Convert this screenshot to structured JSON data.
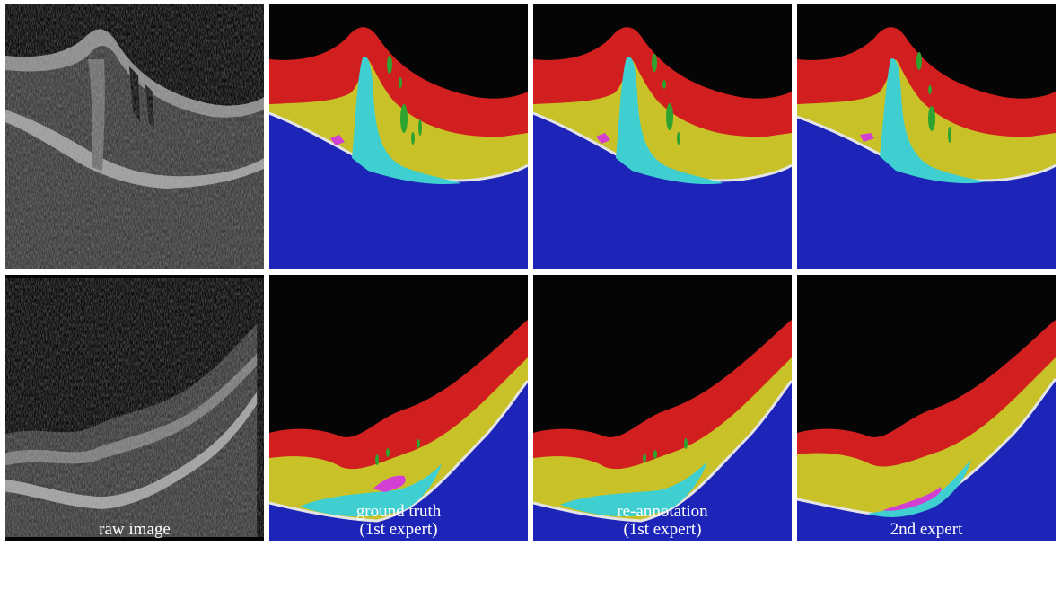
{
  "figure": {
    "rows": [
      {
        "row": "top",
        "panels": [
          {
            "kind": "raw",
            "caption": []
          },
          {
            "kind": "gt",
            "caption": []
          },
          {
            "kind": "reann",
            "caption": []
          },
          {
            "kind": "expert2",
            "caption": []
          }
        ]
      },
      {
        "row": "bottom",
        "panels": [
          {
            "kind": "raw",
            "caption": [
              "raw image"
            ]
          },
          {
            "kind": "gt",
            "caption": [
              "ground truth",
              "(1st expert)"
            ]
          },
          {
            "kind": "reann",
            "caption": [
              "re-annotation",
              "(1st expert)"
            ]
          },
          {
            "kind": "expert2",
            "caption": [
              "2nd expert"
            ]
          }
        ]
      }
    ],
    "colors": {
      "background": "#050505",
      "layer_red": "#d11f1f",
      "layer_yellow": "#c8c127",
      "layer_blue": "#1d24b8",
      "fluid_cyan": "#3fcfd0",
      "cyst_green": "#2fa32f",
      "lesion_magenta": "#d23fd2",
      "boundary_white": "#e4e4e4",
      "separator": "#ffffff"
    }
  }
}
